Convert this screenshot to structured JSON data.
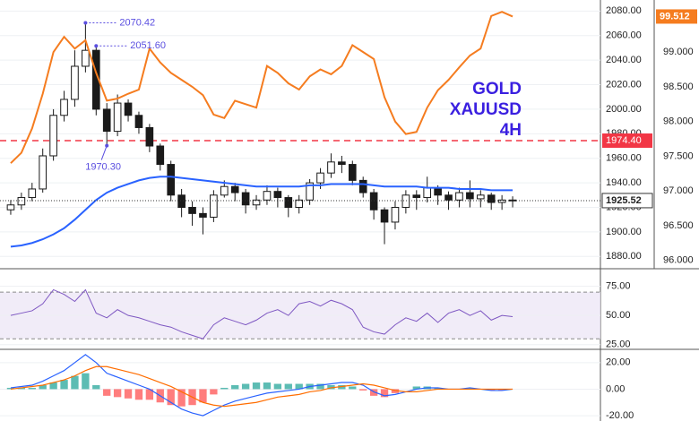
{
  "chart_data": [
    {
      "type": "candlestick",
      "title": "GOLD",
      "subtitle": "XAUUSD",
      "interval": "4H",
      "title_color": "#3a1fe0",
      "open": [
        1918,
        1922,
        1928,
        1935,
        1962,
        1995,
        2008,
        2035,
        2048,
        2000,
        1982,
        2005,
        1995,
        1985,
        1970,
        1955,
        1930,
        1920,
        1915,
        1912,
        1930,
        1937,
        1932,
        1922,
        1926,
        1933,
        1928,
        1920,
        1926,
        1940,
        1948,
        1957,
        1955,
        1942,
        1932,
        1918,
        1908,
        1920,
        1930,
        1928,
        1936,
        1930,
        1926,
        1932,
        1927,
        1930,
        1924,
        1926
      ],
      "high": [
        1926,
        1932,
        1940,
        1968,
        2000,
        2015,
        2048,
        2070.42,
        2051.6,
        2005,
        2012,
        2008,
        1998,
        1988,
        1972,
        1958,
        1935,
        1925,
        1920,
        1934,
        1942,
        1940,
        1935,
        1930,
        1938,
        1936,
        1930,
        1930,
        1943,
        1952,
        1964,
        1962,
        1958,
        1945,
        1935,
        1920,
        1925,
        1934,
        1934,
        1945,
        1938,
        1933,
        1936,
        1942,
        1934,
        1932,
        1930,
        1929
      ],
      "low": [
        1914,
        1918,
        1925,
        1932,
        1958,
        1990,
        2002,
        2030,
        1995,
        1970.3,
        1978,
        1990,
        1980,
        1965,
        1950,
        1925,
        1912,
        1905,
        1898,
        1908,
        1928,
        1925,
        1915,
        1918,
        1922,
        1920,
        1912,
        1915,
        1922,
        1935,
        1944,
        1948,
        1938,
        1928,
        1910,
        1890,
        1902,
        1915,
        1918,
        1924,
        1922,
        1918,
        1920,
        1920,
        1920,
        1918,
        1918,
        1920
      ],
      "close": [
        1922,
        1928,
        1935,
        1962,
        1995,
        2008,
        2035,
        2048,
        2000,
        1982,
        2005,
        1995,
        1985,
        1970,
        1955,
        1930,
        1920,
        1915,
        1912,
        1930,
        1937,
        1932,
        1922,
        1926,
        1933,
        1928,
        1920,
        1926,
        1940,
        1948,
        1957,
        1955,
        1942,
        1932,
        1918,
        1908,
        1920,
        1930,
        1928,
        1936,
        1930,
        1926,
        1932,
        1927,
        1930,
        1924,
        1926,
        1925.52
      ],
      "color_up": "#ffffff",
      "color_down": "#1a1a1a",
      "overlays": [
        {
          "color": "#2962ff",
          "values": [
            1888,
            1889,
            1891,
            1894,
            1898,
            1903,
            1910,
            1918,
            1926,
            1932,
            1936,
            1939,
            1942,
            1944,
            1945,
            1945,
            1944,
            1943,
            1942,
            1941,
            1940,
            1939,
            1938,
            1937,
            1937,
            1937,
            1937,
            1937,
            1938,
            1938,
            1939,
            1939,
            1939,
            1939,
            1938,
            1937,
            1937,
            1937,
            1937,
            1936,
            1936,
            1936,
            1935,
            1935,
            1935,
            1934,
            1934,
            1934
          ]
        },
        {
          "color": "#f57c1f",
          "axis": "y2",
          "values": [
            97.4,
            97.55,
            97.9,
            98.4,
            99.0,
            99.22,
            99.05,
            99.17,
            98.7,
            98.3,
            98.33,
            98.4,
            98.46,
            99.05,
            98.85,
            98.7,
            98.6,
            98.5,
            98.38,
            98.1,
            98.05,
            98.3,
            98.25,
            98.2,
            98.8,
            98.7,
            98.55,
            98.46,
            98.65,
            98.75,
            98.68,
            98.8,
            99.1,
            99.0,
            98.9,
            98.35,
            98.0,
            97.82,
            97.85,
            98.2,
            98.45,
            98.6,
            98.78,
            98.95,
            99.05,
            99.52,
            99.58,
            99.512
          ]
        }
      ],
      "high_marks": [
        2070.42,
        {
          "value": 2051.6,
          "label": "2051.60"
        }
      ],
      "low_marks": [
        {
          "value": 1970.3,
          "label": "1970.30"
        }
      ],
      "annotation_color": "#5b4fe0",
      "levels": [
        {
          "value": 1974.4,
          "label": "1974.40",
          "color": "#f23645"
        }
      ],
      "ylim": [
        1870,
        2089
      ],
      "yticks": [
        {
          "value": 1880,
          "label": "1880.00"
        },
        {
          "value": 1900,
          "label": "1900.00"
        },
        {
          "value": 1920,
          "label": "1920.00"
        },
        {
          "value": 1940,
          "label": "1940.00"
        },
        {
          "value": 1960,
          "label": "1960.00"
        },
        {
          "value": 1980,
          "label": "1980.00"
        },
        {
          "value": 2000,
          "label": "2000.00"
        },
        {
          "value": 2020,
          "label": "2020.00"
        },
        {
          "value": 2040,
          "label": "2040.00"
        },
        {
          "value": 2060,
          "label": "2060.00"
        },
        {
          "value": 2080,
          "label": "2080.00"
        }
      ],
      "y2lim": [
        95.88,
        99.75
      ],
      "y2ticks": [
        {
          "value": 96,
          "label": "96.000"
        },
        {
          "value": 96.5,
          "label": "96.500"
        },
        {
          "value": 97,
          "label": "97.000"
        },
        {
          "value": 97.5,
          "label": "97.500"
        },
        {
          "value": 98,
          "label": "98.000"
        },
        {
          "value": 98.5,
          "label": "98.500"
        },
        {
          "value": 99,
          "label": "99.000"
        }
      ],
      "grid": true
    },
    {
      "type": "line",
      "color": "#7e57c2",
      "values": [
        50,
        52,
        54,
        60,
        72,
        68,
        62,
        72,
        52,
        48,
        55,
        50,
        48,
        45,
        42,
        40,
        36,
        33,
        30,
        42,
        48,
        45,
        42,
        46,
        52,
        55,
        50,
        60,
        62,
        58,
        63,
        60,
        55,
        40,
        36,
        34,
        42,
        48,
        45,
        52,
        44,
        52,
        55,
        50,
        54,
        46,
        50,
        49
      ],
      "band": [
        30,
        70
      ],
      "ylim": [
        21,
        90
      ],
      "yticks": [
        {
          "value": 25,
          "label": "25.00"
        },
        {
          "value": 50,
          "label": "50.00"
        },
        {
          "value": 75,
          "label": "75.00"
        }
      ],
      "grid": true
    },
    {
      "type": "macd",
      "macd": {
        "color": "#2962ff",
        "values": [
          1,
          2,
          3,
          6,
          10,
          14,
          20,
          26,
          20,
          12,
          9,
          6,
          3,
          0,
          -5,
          -10,
          -15,
          -18,
          -20,
          -16,
          -12,
          -9,
          -7,
          -5,
          -3,
          -2,
          -1,
          0,
          2,
          3,
          4,
          5,
          5,
          3,
          -2,
          -5,
          -4,
          -2,
          0,
          1,
          1,
          0,
          0,
          1,
          0,
          -1,
          -1,
          0
        ]
      },
      "signal": {
        "color": "#ff6d00",
        "values": [
          0,
          1,
          2,
          3,
          5,
          7,
          10,
          14,
          17,
          17,
          15,
          13,
          11,
          8,
          5,
          2,
          -2,
          -6,
          -10,
          -12,
          -13,
          -12,
          -11,
          -10,
          -8,
          -6,
          -5,
          -4,
          -2,
          -1,
          1,
          2,
          3,
          4,
          3,
          1,
          -1,
          -2,
          -2,
          -1,
          0,
          0,
          0,
          0,
          0,
          0,
          0,
          0
        ]
      },
      "histogram": {
        "color_up": "#26a69a",
        "color_down": "#ff5252",
        "values": [
          1,
          1,
          1,
          3,
          5,
          7,
          10,
          12,
          3,
          -5,
          -6,
          -7,
          -8,
          -8,
          -10,
          -12,
          -13,
          -12,
          -10,
          -4,
          1,
          3,
          4,
          5,
          5,
          4,
          4,
          4,
          4,
          4,
          3,
          3,
          2,
          -1,
          -5,
          -6,
          -3,
          0,
          2,
          2,
          1,
          0,
          0,
          1,
          0,
          -1,
          -1,
          0
        ]
      },
      "ylim": [
        -24,
        30
      ],
      "yticks": [
        {
          "value": -20,
          "label": "-20.00"
        },
        {
          "value": 0,
          "label": "0.00"
        },
        {
          "value": 20,
          "label": "20.00"
        }
      ],
      "grid": true
    }
  ]
}
